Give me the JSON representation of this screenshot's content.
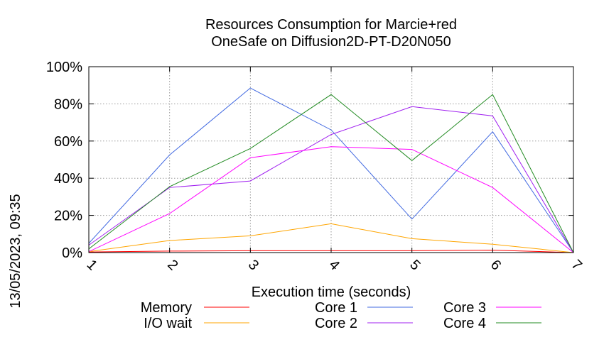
{
  "chart_data": {
    "type": "line",
    "title_line1": "Resources Consumption for Marcie+red",
    "title_line2": "OneSafe on Diffusion2D-PT-D20N050",
    "xlabel": "Execution time (seconds)",
    "ylabel": "",
    "side_label": "13/05/2023, 09:35",
    "x": [
      1,
      2,
      3,
      4,
      5,
      6,
      7
    ],
    "xlim": [
      1,
      7
    ],
    "ylim": [
      0,
      100
    ],
    "x_ticks": [
      "1",
      "2",
      "3",
      "4",
      "5",
      "6",
      "7"
    ],
    "y_ticks": [
      {
        "value": 0,
        "label": "0%"
      },
      {
        "value": 20,
        "label": "20%"
      },
      {
        "value": 40,
        "label": "40%"
      },
      {
        "value": 60,
        "label": "60%"
      },
      {
        "value": 80,
        "label": "80%"
      },
      {
        "value": 100,
        "label": "100%"
      }
    ],
    "grid": true,
    "legend_position": "bottom",
    "series": [
      {
        "name": "Memory",
        "color": "#ff0000",
        "values": [
          0.3,
          0.8,
          1.0,
          1.0,
          1.0,
          1.3,
          0
        ]
      },
      {
        "name": "I/O wait",
        "color": "#ffa500",
        "values": [
          0.5,
          6.5,
          9.0,
          15.5,
          7.5,
          4.5,
          0
        ]
      },
      {
        "name": "Core 1",
        "color": "#4169e1",
        "values": [
          5,
          52.5,
          88.5,
          66,
          18,
          65,
          0
        ]
      },
      {
        "name": "Core 2",
        "color": "#a020f0",
        "values": [
          4,
          35,
          38.5,
          63.5,
          78.5,
          73.5,
          0
        ]
      },
      {
        "name": "Core 3",
        "color": "#ff00ff",
        "values": [
          0.5,
          21,
          51,
          57,
          55.5,
          35,
          0
        ]
      },
      {
        "name": "Core 4",
        "color": "#228b22",
        "values": [
          2,
          35.5,
          56,
          85,
          49.5,
          85,
          0
        ]
      }
    ]
  }
}
